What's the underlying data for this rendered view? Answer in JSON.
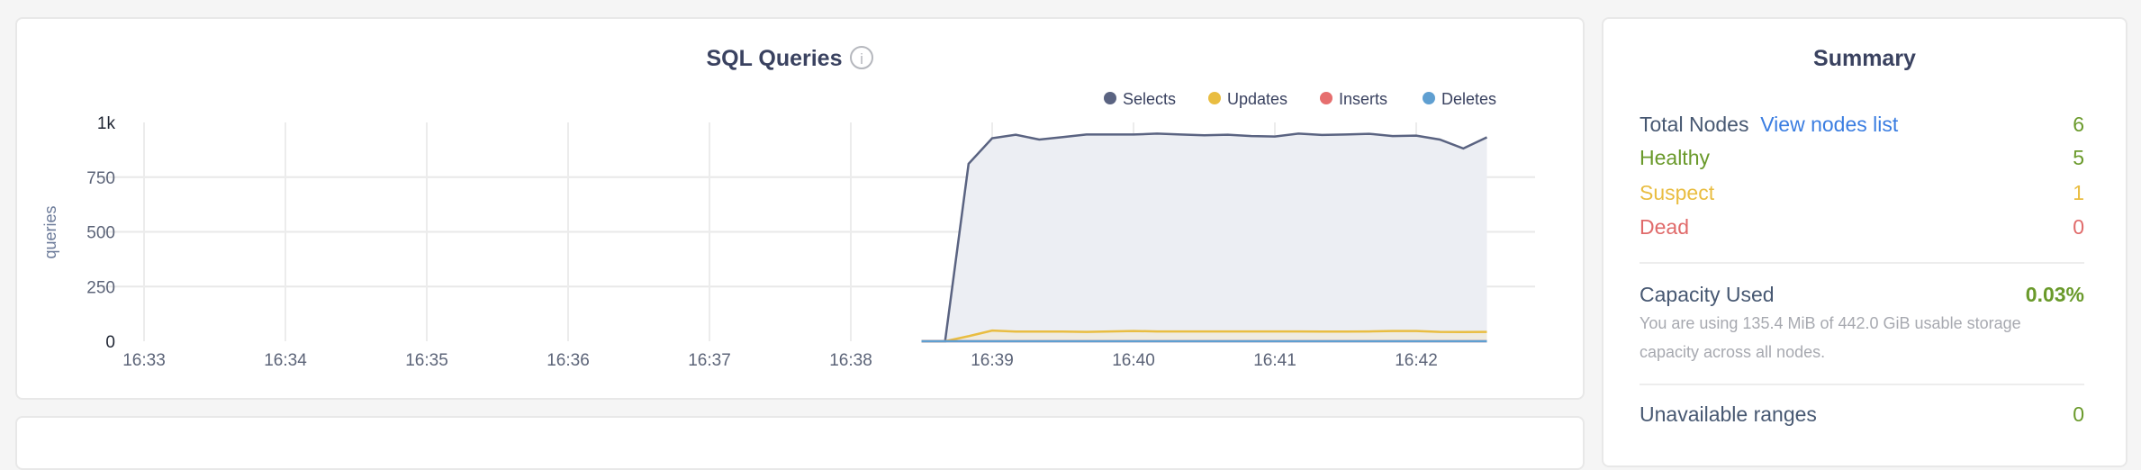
{
  "chart_card": {
    "title": "SQL Queries",
    "info_icon": "info-circle-icon"
  },
  "chart_data": {
    "type": "area",
    "title": "SQL Queries",
    "ylabel": "queries",
    "xlabel": "",
    "ylim": [
      0,
      1000
    ],
    "y_ticks": [
      "0",
      "250",
      "500",
      "750",
      "1k"
    ],
    "y_tick_values": [
      0,
      250,
      500,
      750,
      1000
    ],
    "x_ticks": [
      "16:33",
      "16:34",
      "16:35",
      "16:36",
      "16:37",
      "16:38",
      "16:39",
      "16:40",
      "16:41",
      "16:42"
    ],
    "xlim": [
      "16:32:48",
      "16:43:20"
    ],
    "grid": true,
    "legend_position": "top-right",
    "x": [
      "16:38:30",
      "16:38:40",
      "16:38:50",
      "16:39:00",
      "16:39:10",
      "16:39:20",
      "16:39:30",
      "16:39:40",
      "16:39:50",
      "16:40:00",
      "16:40:10",
      "16:40:20",
      "16:40:30",
      "16:40:40",
      "16:40:50",
      "16:41:00",
      "16:41:10",
      "16:41:20",
      "16:41:30",
      "16:41:40",
      "16:41:50",
      "16:42:00",
      "16:42:10",
      "16:42:20",
      "16:42:30"
    ],
    "series": [
      {
        "name": "Selects",
        "color": "#5a6381",
        "fill": "#eceef3",
        "values": [
          0,
          0,
          811,
          928,
          944,
          922,
          933,
          945,
          945,
          945,
          949,
          945,
          941,
          944,
          938,
          936,
          949,
          943,
          945,
          948,
          938,
          940,
          922,
          881,
          932
        ]
      },
      {
        "name": "Updates",
        "color": "#e9bd41",
        "fill": "#efebe1",
        "values": [
          0,
          0,
          23,
          49,
          44,
          44,
          44,
          43,
          45,
          47,
          45,
          45,
          45,
          45,
          45,
          45,
          45,
          44,
          44,
          45,
          47,
          47,
          43,
          42,
          43
        ]
      },
      {
        "name": "Inserts",
        "color": "#e66e6e",
        "fill": "none",
        "values": [
          0,
          0,
          0,
          0,
          0,
          0,
          0,
          0,
          0,
          0,
          0,
          0,
          0,
          0,
          0,
          0,
          0,
          0,
          0,
          0,
          0,
          0,
          0,
          0,
          0
        ]
      },
      {
        "name": "Deletes",
        "color": "#5f9fd1",
        "fill": "none",
        "values": [
          0,
          0,
          0,
          0,
          0,
          0,
          0,
          0,
          0,
          0,
          0,
          0,
          0,
          0,
          0,
          0,
          0,
          0,
          0,
          0,
          0,
          0,
          0,
          0,
          0
        ]
      }
    ]
  },
  "summary": {
    "title": "Summary",
    "total_nodes_label": "Total Nodes",
    "view_nodes_link": "View nodes list",
    "total_nodes": "6",
    "healthy_label": "Healthy",
    "healthy": "5",
    "suspect_label": "Suspect",
    "suspect": "1",
    "dead_label": "Dead",
    "dead": "0",
    "capacity_label": "Capacity Used",
    "capacity_value": "0.03%",
    "capacity_desc": "You are using 135.4 MiB of 442.0 GiB usable storage capacity across all nodes.",
    "unavailable_label": "Unavailable ranges",
    "unavailable_value": "0",
    "colors": {
      "text": "#475872",
      "link": "#3a7de1",
      "green": "#6a9a2b",
      "yellow": "#e9bd41",
      "red": "#e06a6a"
    }
  }
}
